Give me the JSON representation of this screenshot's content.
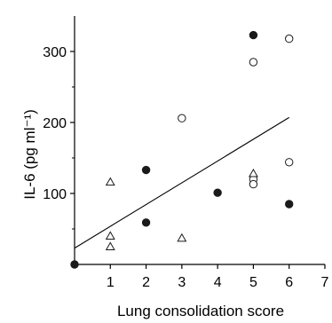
{
  "chart_data": {
    "type": "scatter",
    "title": "",
    "xlabel": "Lung consolidation score",
    "ylabel": "IL-6 (pg ml⁻¹)",
    "xlim": [
      0,
      7
    ],
    "ylim": [
      0,
      350
    ],
    "xticks": [
      "1",
      "2",
      "3",
      "4",
      "5",
      "6",
      "7"
    ],
    "yticks": [
      "100",
      "200",
      "300"
    ],
    "grid": false,
    "legend": "none",
    "series": [
      {
        "marker": "filled-circle",
        "color": "#1a1a1a",
        "points": [
          {
            "x": 0,
            "y": 0
          },
          {
            "x": 2,
            "y": 133
          },
          {
            "x": 2,
            "y": 59
          },
          {
            "x": 4,
            "y": 101
          },
          {
            "x": 5,
            "y": 323
          },
          {
            "x": 6,
            "y": 85
          }
        ]
      },
      {
        "marker": "open-circle",
        "color": "#1a1a1a",
        "points": [
          {
            "x": 3,
            "y": 206
          },
          {
            "x": 5,
            "y": 285
          },
          {
            "x": 5,
            "y": 120
          },
          {
            "x": 5,
            "y": 113
          },
          {
            "x": 6,
            "y": 318
          },
          {
            "x": 6,
            "y": 144
          }
        ]
      },
      {
        "marker": "open-triangle",
        "color": "#1a1a1a",
        "points": [
          {
            "x": 1,
            "y": 116
          },
          {
            "x": 1,
            "y": 40
          },
          {
            "x": 1,
            "y": 25
          },
          {
            "x": 3,
            "y": 37
          },
          {
            "x": 5,
            "y": 128
          }
        ]
      }
    ],
    "regression_line": {
      "x": [
        0,
        6
      ],
      "y": [
        23,
        207
      ]
    }
  }
}
